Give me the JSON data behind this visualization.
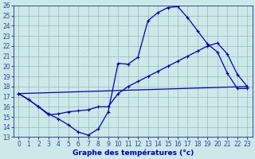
{
  "xlabel": "Graphe des températures (°c)",
  "bg_color": "#cce8e8",
  "line_color": "#0000bb",
  "grid_color": "#99bbbb",
  "axis_color": "#334499",
  "xlim": [
    -0.5,
    23.5
  ],
  "ylim": [
    13,
    26
  ],
  "xticks": [
    0,
    1,
    2,
    3,
    4,
    5,
    6,
    7,
    8,
    9,
    10,
    11,
    12,
    13,
    14,
    15,
    16,
    17,
    18,
    19,
    20,
    21,
    22,
    23
  ],
  "yticks": [
    13,
    14,
    15,
    16,
    17,
    18,
    19,
    20,
    21,
    22,
    23,
    24,
    25,
    26
  ],
  "line1_x": [
    0,
    1,
    2,
    3,
    4,
    5,
    6,
    7,
    8,
    9,
    10,
    11,
    12,
    13,
    14,
    15,
    16,
    17,
    18,
    19,
    20,
    21,
    22,
    23
  ],
  "line1_y": [
    17.3,
    16.7,
    16.0,
    15.3,
    14.8,
    14.2,
    13.5,
    13.2,
    13.8,
    15.5,
    20.3,
    20.2,
    20.9,
    24.5,
    25.3,
    25.8,
    25.9,
    24.8,
    23.5,
    22.2,
    21.4,
    19.3,
    17.8,
    17.8
  ],
  "line2_x": [
    0,
    23
  ],
  "line2_y": [
    17.3,
    18.0
  ],
  "line3_x": [
    0,
    1,
    2,
    3,
    4,
    5,
    6,
    7,
    8,
    9,
    10,
    11,
    12,
    13,
    14,
    15,
    16,
    17,
    18,
    19,
    20,
    21,
    22,
    23
  ],
  "line3_y": [
    17.3,
    16.7,
    16.0,
    15.2,
    15.3,
    15.5,
    15.6,
    15.7,
    16.0,
    16.0,
    17.3,
    18.0,
    18.5,
    19.0,
    19.5,
    20.0,
    20.5,
    21.0,
    21.5,
    22.0,
    22.3,
    21.2,
    19.2,
    18.0
  ]
}
